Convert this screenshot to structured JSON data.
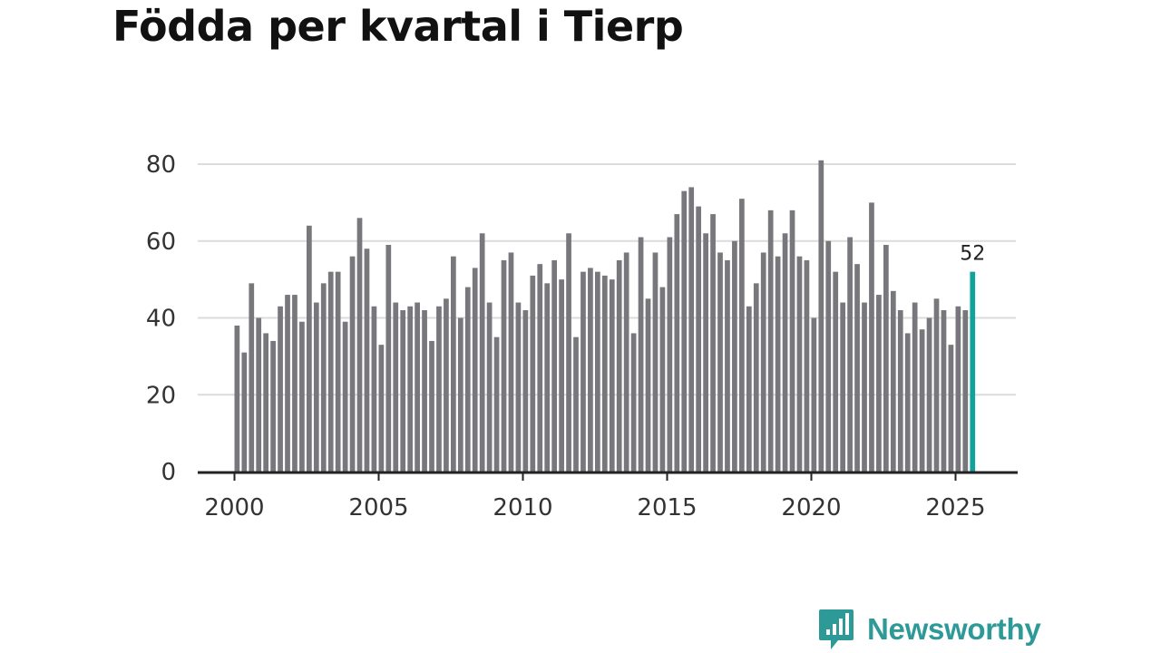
{
  "page": {
    "title": "Födda per kvartal i Tierp"
  },
  "brand": {
    "name": "Newsworthy"
  },
  "colors": {
    "bar": "#78777c",
    "highlight": "#11a29c",
    "grid": "#dcdcdc",
    "axis": "#222222",
    "brand": "#2e9a98"
  },
  "chart_data": {
    "type": "bar",
    "title": "Födda per kvartal i Tierp",
    "xlabel": "",
    "ylabel": "",
    "ylim": [
      0,
      80
    ],
    "yticks": [
      0,
      20,
      40,
      60,
      80
    ],
    "xticks": [
      2000,
      2005,
      2010,
      2015,
      2020,
      2025
    ],
    "start_year": 2000,
    "start_quarter": 1,
    "values": [
      38,
      31,
      49,
      40,
      36,
      34,
      43,
      46,
      46,
      39,
      64,
      44,
      49,
      52,
      52,
      39,
      56,
      66,
      58,
      43,
      33,
      59,
      44,
      42,
      43,
      44,
      42,
      34,
      43,
      45,
      56,
      40,
      48,
      53,
      62,
      44,
      35,
      55,
      57,
      44,
      42,
      51,
      54,
      49,
      55,
      50,
      62,
      35,
      52,
      53,
      52,
      51,
      50,
      55,
      57,
      36,
      61,
      45,
      57,
      48,
      61,
      67,
      73,
      74,
      69,
      62,
      67,
      57,
      55,
      60,
      71,
      43,
      49,
      57,
      68,
      56,
      62,
      68,
      56,
      55,
      40,
      81,
      60,
      52,
      44,
      61,
      54,
      44,
      70,
      46,
      59,
      47,
      42,
      36,
      44,
      37,
      40,
      45,
      42,
      33,
      43,
      42,
      52
    ],
    "highlight_last": true,
    "last_value_label": "52"
  }
}
